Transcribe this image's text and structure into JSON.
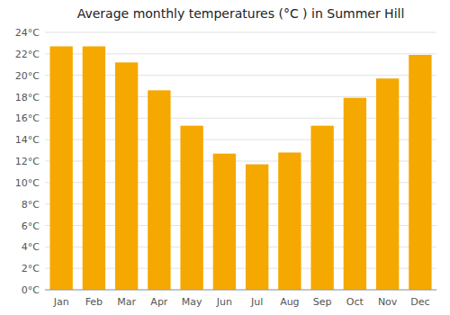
{
  "chart_data": {
    "type": "bar",
    "title": "Average monthly temperatures (°C ) in Summer Hill",
    "categories": [
      "Jan",
      "Feb",
      "Mar",
      "Apr",
      "May",
      "Jun",
      "Jul",
      "Aug",
      "Sep",
      "Oct",
      "Nov",
      "Dec"
    ],
    "values": [
      22.7,
      22.7,
      21.2,
      18.6,
      15.3,
      12.7,
      11.7,
      12.8,
      15.3,
      17.9,
      19.7,
      21.9
    ],
    "color": "#F5A800",
    "ylim": [
      0,
      24
    ],
    "yticks": [
      {
        "value": 0,
        "label": "0°C"
      },
      {
        "value": 2,
        "label": "2°C"
      },
      {
        "value": 4,
        "label": "4°C"
      },
      {
        "value": 6,
        "label": "6°C"
      },
      {
        "value": 8,
        "label": "8°C"
      },
      {
        "value": 10,
        "label": "10°C"
      },
      {
        "value": 12,
        "label": "12°C"
      },
      {
        "value": 14,
        "label": "14°C"
      },
      {
        "value": 16,
        "label": "16°C"
      },
      {
        "value": 18,
        "label": "18°C"
      },
      {
        "value": 20,
        "label": "20°C"
      },
      {
        "value": 22,
        "label": "22°C"
      },
      {
        "value": 24,
        "label": "24°C"
      }
    ],
    "grid": true
  }
}
